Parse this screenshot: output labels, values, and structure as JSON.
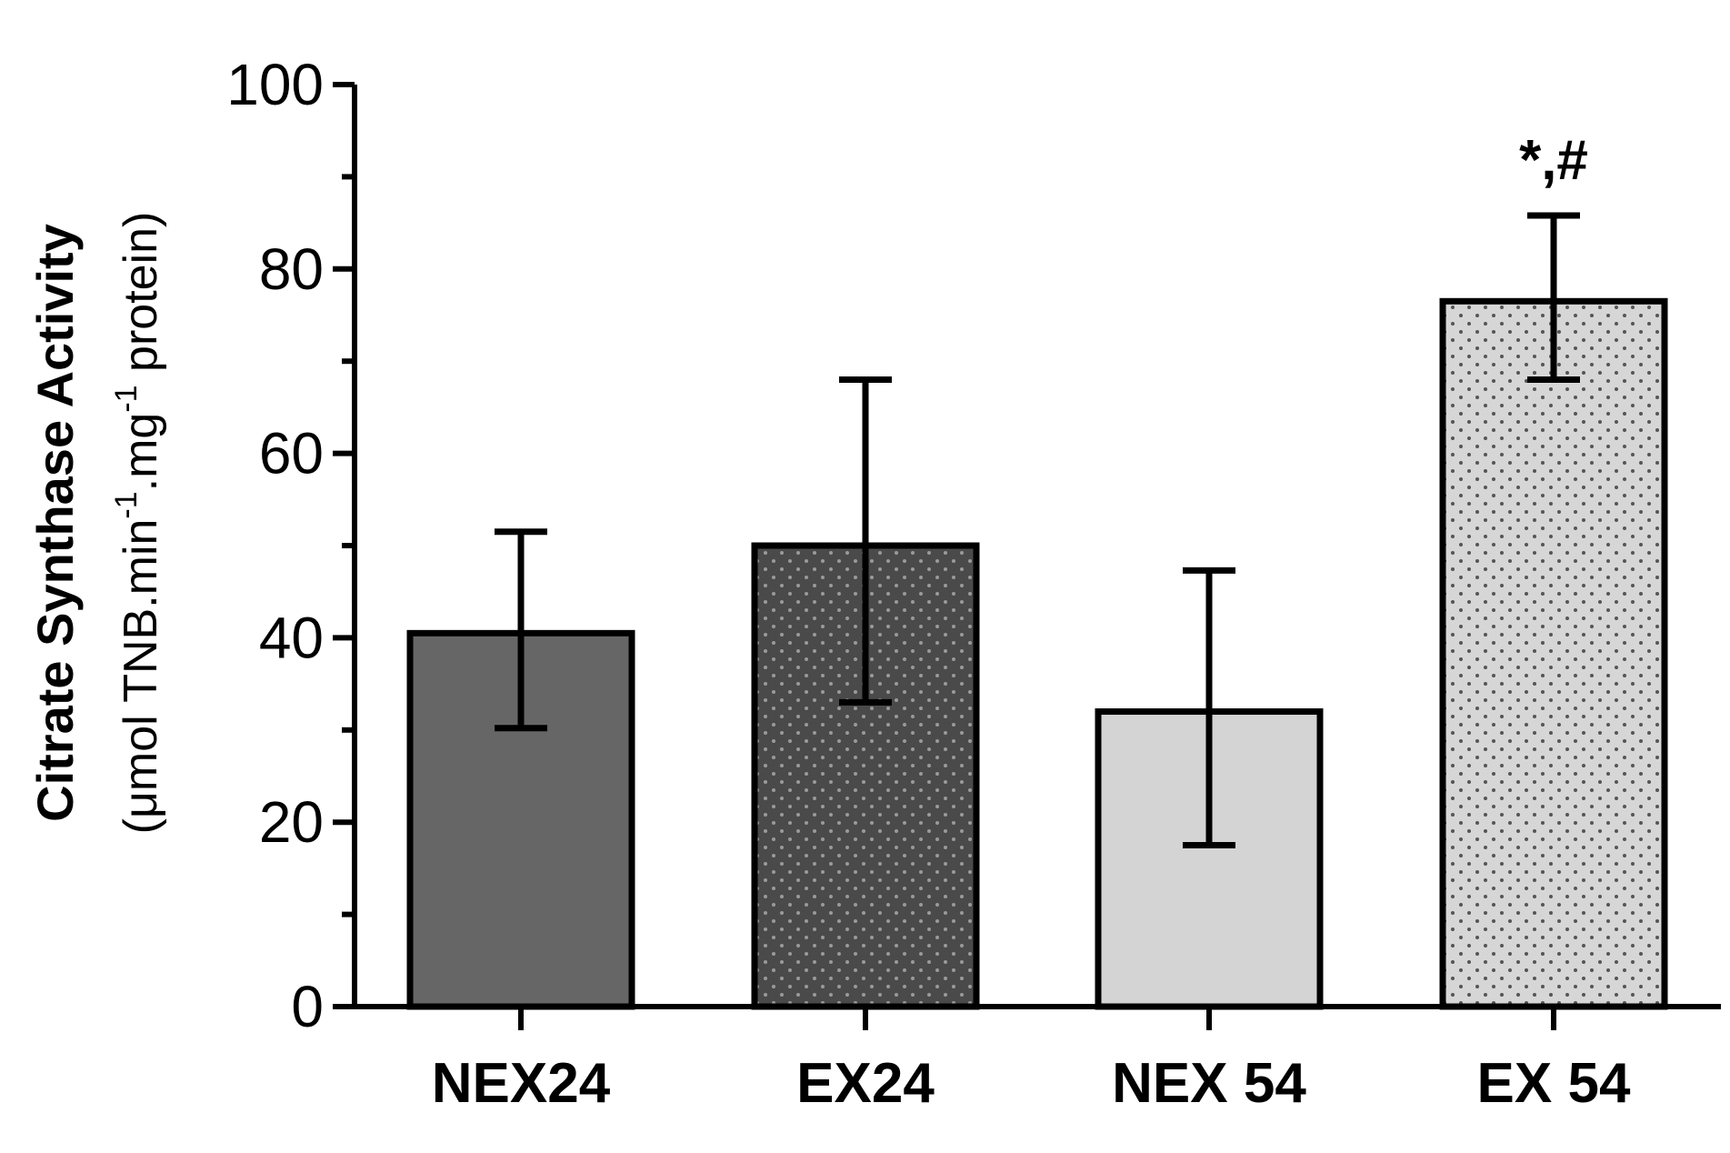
{
  "chart_data": {
    "type": "bar",
    "title": "",
    "xlabel": "",
    "ylabel": "Citrate Synthase Activity",
    "ylabel_units": {
      "open": "(μmol TNB.min",
      "sup1": "-1",
      "mid": ".mg",
      "sup2": "-1",
      "close": " protein)"
    },
    "ylim": [
      0,
      100
    ],
    "yticks": [
      0,
      20,
      40,
      60,
      80,
      100
    ],
    "yticks_labels": [
      "0",
      "20",
      "40",
      "60",
      "80",
      "100"
    ],
    "categories": [
      "NEX24",
      "EX24",
      "NEX 54",
      "EX 54"
    ],
    "values": [
      40.5,
      50.0,
      32.0,
      76.5
    ],
    "error_lower": [
      30.2,
      33.0,
      17.5,
      68.0
    ],
    "error_upper": [
      51.5,
      68.0,
      47.3,
      85.8
    ],
    "bar_colors": [
      "#666666",
      "#4a4a4a",
      "#d4d4d4",
      "#d6d6d6"
    ],
    "bar_patterns": [
      "none",
      "dots-light",
      "none",
      "dots-dark"
    ],
    "annotations": [
      {
        "category": "EX 54",
        "text": "*,#"
      }
    ],
    "grid": false,
    "legend": "none"
  }
}
